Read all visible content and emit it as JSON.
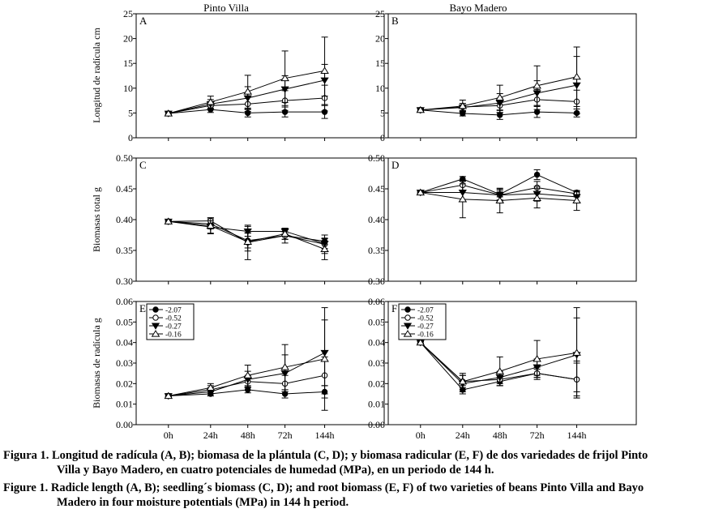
{
  "figure": {
    "column_titles": [
      "Pinto Villa",
      "Bayo Madero"
    ],
    "x_categories": [
      "0h",
      "24h",
      "48h",
      "72h",
      "144h"
    ],
    "legend_entries": [
      "-2.07",
      "-0.52",
      "-0.27",
      "-0.16"
    ],
    "colors": {
      "line": "#000000",
      "background": "#ffffff"
    }
  },
  "captions": {
    "es_line1": "Figura 1. Longitud de radícula (A, B); biomasa de la plántula (C, D); y biomasa radicular (E, F) de dos variedades de frijol Pinto",
    "es_line2": "Villa y Bayo Madero, en cuatro potenciales de humedad (MPa), en un periodo de 144 h.",
    "en_line1": "Figure 1. Radicle length (A, B); seedling´s biomass (C, D); and root biomass (E, F) of two varieties of beans Pinto Villa and Bayo",
    "en_line2": "Madero in four moisture potentials (MPa) in 144 h period."
  },
  "chart_data": [
    {
      "panel": "A",
      "type": "line",
      "title": "Pinto Villa",
      "ylabel": "Longitud de radícula cm",
      "ylim": [
        0,
        25
      ],
      "yticks": [
        "0",
        "5",
        "10",
        "15",
        "20",
        "25"
      ],
      "categories": [
        "0h",
        "24h",
        "48h",
        "72h",
        "144h"
      ],
      "series": [
        {
          "name": "-2.07",
          "marker": "filled-circle",
          "values": [
            4.9,
            5.7,
            5.0,
            5.2,
            5.2
          ],
          "errors": [
            0.2,
            0.6,
            0.8,
            1.0,
            1.3
          ]
        },
        {
          "name": "-0.52",
          "marker": "open-circle",
          "values": [
            4.9,
            6.5,
            6.8,
            7.5,
            8.0
          ],
          "errors": [
            0.2,
            0.8,
            1.5,
            2.0,
            2.6
          ]
        },
        {
          "name": "-0.27",
          "marker": "filled-triangle-down",
          "values": [
            4.9,
            6.8,
            8.0,
            9.8,
            11.6
          ],
          "errors": [
            0.2,
            0.9,
            2.3,
            2.7,
            3.2
          ]
        },
        {
          "name": "-0.16",
          "marker": "open-triangle-up",
          "values": [
            4.9,
            7.2,
            9.3,
            12.0,
            13.5
          ],
          "errors": [
            0.2,
            1.2,
            3.3,
            5.5,
            6.8
          ]
        }
      ]
    },
    {
      "panel": "B",
      "type": "line",
      "title": "Bayo Madero",
      "ylabel": "",
      "ylim": [
        0,
        25
      ],
      "yticks": [
        "0",
        "5",
        "10",
        "15",
        "20",
        "25"
      ],
      "categories": [
        "0h",
        "24h",
        "48h",
        "72h",
        "144h"
      ],
      "series": [
        {
          "name": "-2.07",
          "marker": "filled-circle",
          "values": [
            5.6,
            4.9,
            4.6,
            5.2,
            5.0
          ],
          "errors": [
            0.2,
            0.5,
            0.9,
            1.1,
            0.8
          ]
        },
        {
          "name": "-0.52",
          "marker": "open-circle",
          "values": [
            5.6,
            6.2,
            6.5,
            7.7,
            7.3
          ],
          "errors": [
            0.2,
            0.7,
            1.5,
            2.0,
            2.3
          ]
        },
        {
          "name": "-0.27",
          "marker": "filled-triangle-down",
          "values": [
            5.6,
            6.1,
            7.0,
            9.0,
            10.6
          ],
          "errors": [
            0.2,
            0.8,
            1.9,
            2.5,
            5.8
          ]
        },
        {
          "name": "-0.16",
          "marker": "open-triangle-up",
          "values": [
            5.6,
            6.4,
            8.1,
            10.5,
            12.3
          ],
          "errors": [
            0.2,
            1.2,
            2.5,
            4.0,
            6.0
          ]
        }
      ]
    },
    {
      "panel": "C",
      "type": "line",
      "ylabel": "Biomasas total g",
      "ylim": [
        0.3,
        0.5
      ],
      "yticks": [
        "0.30",
        "0.35",
        "0.40",
        "0.45",
        "0.50"
      ],
      "categories": [
        "0h",
        "24h",
        "48h",
        "72h",
        "144h"
      ],
      "series": [
        {
          "name": "-2.07",
          "marker": "filled-circle",
          "values": [
            0.397,
            0.393,
            0.366,
            0.374,
            0.365
          ],
          "errors": [
            0.001,
            0.008,
            0.012,
            0.006,
            0.005
          ]
        },
        {
          "name": "-0.52",
          "marker": "open-circle",
          "values": [
            0.397,
            0.398,
            0.363,
            0.374,
            0.36
          ],
          "errors": [
            0.001,
            0.005,
            0.028,
            0.012,
            0.015
          ]
        },
        {
          "name": "-0.27",
          "marker": "filled-triangle-down",
          "values": [
            0.397,
            0.388,
            0.381,
            0.381,
            0.361
          ],
          "errors": [
            0.001,
            0.01,
            0.008,
            0.004,
            0.008
          ]
        },
        {
          "name": "-0.16",
          "marker": "open-triangle-up",
          "values": [
            0.397,
            0.39,
            0.364,
            0.377,
            0.352
          ],
          "errors": [
            0.001,
            0.013,
            0.015,
            0.009,
            0.017
          ]
        }
      ]
    },
    {
      "panel": "D",
      "type": "line",
      "ylabel": "",
      "ylim": [
        0.3,
        0.5
      ],
      "yticks": [
        "0.30",
        "0.35",
        "0.40",
        "0.45",
        "0.50"
      ],
      "categories": [
        "0h",
        "24h",
        "48h",
        "72h",
        "144h"
      ],
      "series": [
        {
          "name": "-2.07",
          "marker": "filled-circle",
          "values": [
            0.444,
            0.466,
            0.441,
            0.473,
            0.444
          ],
          "errors": [
            0.001,
            0.004,
            0.004,
            0.008,
            0.003
          ]
        },
        {
          "name": "-0.52",
          "marker": "open-circle",
          "values": [
            0.444,
            0.456,
            0.44,
            0.452,
            0.442
          ],
          "errors": [
            0.001,
            0.008,
            0.008,
            0.01,
            0.005
          ]
        },
        {
          "name": "-0.27",
          "marker": "filled-triangle-down",
          "values": [
            0.444,
            0.444,
            0.44,
            0.442,
            0.437
          ],
          "errors": [
            0.001,
            0.014,
            0.01,
            0.012,
            0.008
          ]
        },
        {
          "name": "-0.16",
          "marker": "open-triangle-up",
          "values": [
            0.444,
            0.433,
            0.431,
            0.435,
            0.431
          ],
          "errors": [
            0.001,
            0.03,
            0.02,
            0.016,
            0.016
          ]
        }
      ]
    },
    {
      "panel": "E",
      "type": "line",
      "ylabel": "Biomasas de radícula g",
      "ylim": [
        0,
        0.06
      ],
      "yticks": [
        "0.00",
        "0.01",
        "0.02",
        "0.03",
        "0.04",
        "0.05",
        "0.06"
      ],
      "categories": [
        "0h",
        "24h",
        "48h",
        "72h",
        "144h"
      ],
      "legend": {
        "placement": "top-left",
        "entries": [
          "-2.07",
          "-0.52",
          "-0.27",
          "-0.16"
        ]
      },
      "series": [
        {
          "name": "-2.07",
          "marker": "filled-circle",
          "values": [
            0.014,
            0.015,
            0.017,
            0.015,
            0.016
          ],
          "errors": [
            0.0004,
            0.001,
            0.0015,
            0.002,
            0.003
          ]
        },
        {
          "name": "-0.52",
          "marker": "open-circle",
          "values": [
            0.014,
            0.017,
            0.021,
            0.02,
            0.024
          ],
          "errors": [
            0.0004,
            0.002,
            0.003,
            0.004,
            0.009
          ]
        },
        {
          "name": "-0.27",
          "marker": "filled-triangle-down",
          "values": [
            0.014,
            0.016,
            0.022,
            0.025,
            0.035
          ],
          "errors": [
            0.0004,
            0.002,
            0.004,
            0.009,
            0.016
          ]
        },
        {
          "name": "-0.16",
          "marker": "open-triangle-up",
          "values": [
            0.014,
            0.018,
            0.024,
            0.028,
            0.032
          ],
          "errors": [
            0.0004,
            0.002,
            0.005,
            0.011,
            0.025
          ]
        }
      ]
    },
    {
      "panel": "F",
      "type": "line",
      "ylabel": "",
      "ylim": [
        0,
        0.06
      ],
      "yticks": [
        "0.00",
        "0.01",
        "0.02",
        "0.03",
        "0.04",
        "0.05",
        "0.06"
      ],
      "categories": [
        "0h",
        "24h",
        "48h",
        "72h",
        "144h"
      ],
      "legend": {
        "placement": "top-left",
        "entries": [
          "-2.07",
          "-0.52",
          "-0.27",
          "-0.16"
        ]
      },
      "series": [
        {
          "name": "-2.07",
          "marker": "filled-circle",
          "values": [
            0.04,
            0.017,
            0.021,
            0.025,
            0.022
          ],
          "errors": [
            0.0004,
            0.002,
            0.002,
            0.002,
            0.008
          ]
        },
        {
          "name": "-0.52",
          "marker": "open-circle",
          "values": [
            0.04,
            0.021,
            0.022,
            0.025,
            0.022
          ],
          "errors": [
            0.0004,
            0.003,
            0.003,
            0.003,
            0.009
          ]
        },
        {
          "name": "-0.27",
          "marker": "filled-triangle-down",
          "values": [
            0.04,
            0.02,
            0.023,
            0.028,
            0.034
          ],
          "errors": [
            0.0004,
            0.004,
            0.003,
            0.004,
            0.018
          ]
        },
        {
          "name": "-0.16",
          "marker": "open-triangle-up",
          "values": [
            0.04,
            0.021,
            0.026,
            0.032,
            0.035
          ],
          "errors": [
            0.0004,
            0.004,
            0.007,
            0.009,
            0.022
          ]
        }
      ]
    }
  ]
}
